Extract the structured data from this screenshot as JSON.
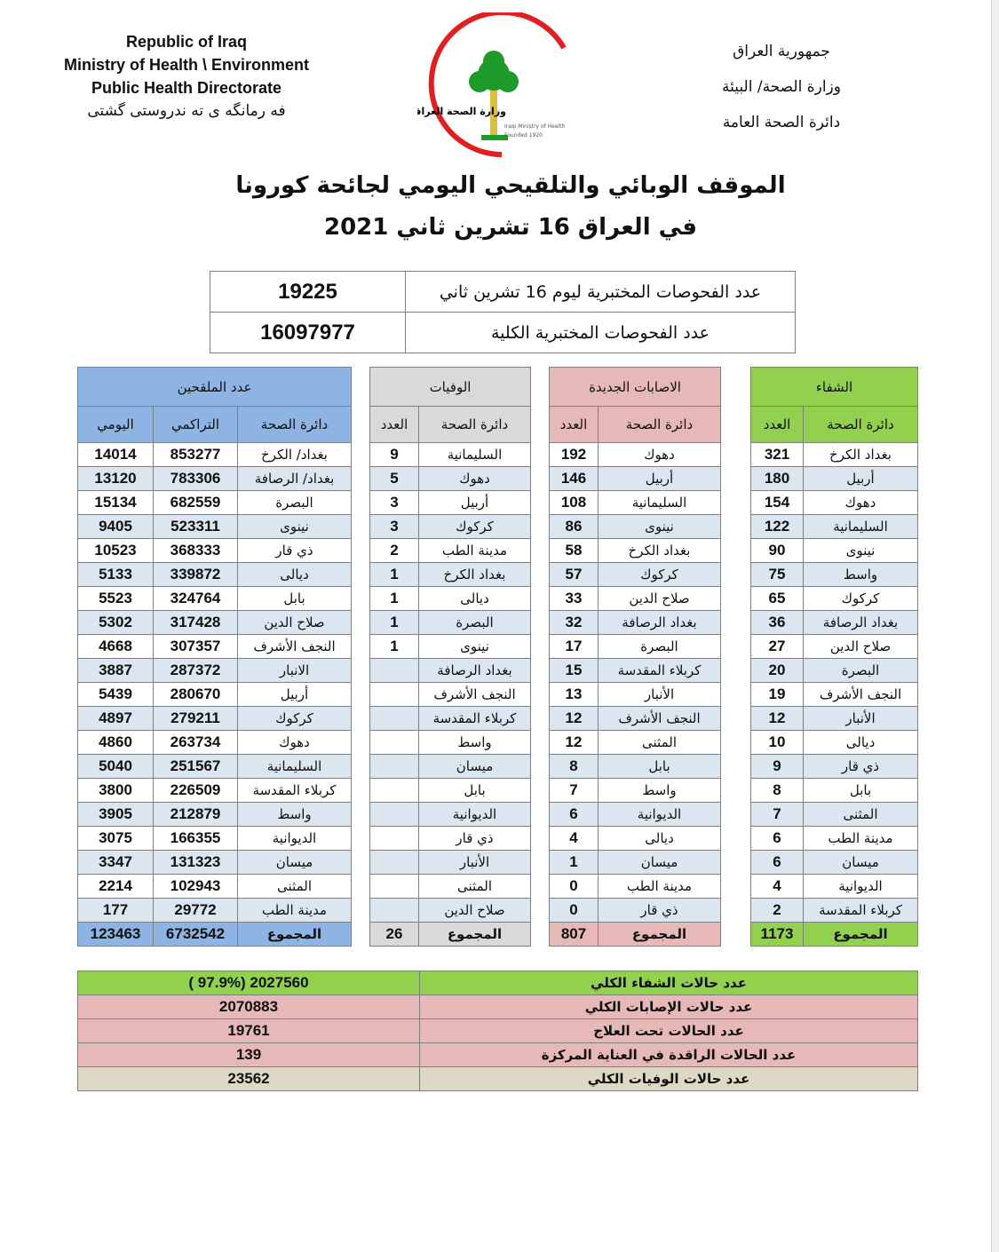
{
  "header": {
    "en_lines": [
      "Republic of Iraq",
      "Ministry of Health \\ Environment",
      "Public Health Directorate"
    ],
    "kurdish_line": "فه رمانگه ی ته ندروستی گشتی",
    "ar_lines": [
      "جمهورية العراق",
      "وزارة الصحة/ البيئة",
      "دائرة الصحة العامة"
    ],
    "logo": {
      "ar": "وزارة الصحة العراقية",
      "en": "Iraqi Ministry of Health",
      "founded": "Founded 1920"
    }
  },
  "title_line1": "الموقف الوبائي والتلقيحي اليومي لجائحة كورونا",
  "title_line2": "في العراق  16  تشرين ثاني 2021",
  "tests": [
    {
      "label": "عدد الفحوصات المختبرية  ليوم 16 تشرين ثاني",
      "value": "19225"
    },
    {
      "label": "عدد الفحوصات المختبرية الكلية",
      "value": "16097977"
    }
  ],
  "colors": {
    "recovery": "#92d050",
    "new_cases": "#e6b8b7",
    "deaths": "#d9d9d9",
    "vaccinated": "#8db4e2",
    "alt_row": "#dce6f1",
    "total_deaths": "#ddd9c4"
  },
  "recovery": {
    "title": "الشفاء",
    "col_name": "دائرة الصحة",
    "col_count": "العدد",
    "rows": [
      [
        "بغداد الكرخ",
        "321"
      ],
      [
        "أربيل",
        "180"
      ],
      [
        "دهوك",
        "154"
      ],
      [
        "السليمانية",
        "122"
      ],
      [
        "نينوى",
        "90"
      ],
      [
        "واسط",
        "75"
      ],
      [
        "كركوك",
        "65"
      ],
      [
        "بغداد الرصافة",
        "36"
      ],
      [
        "صلاح الدين",
        "27"
      ],
      [
        "البصرة",
        "20"
      ],
      [
        "النجف الأشرف",
        "19"
      ],
      [
        "الأنبار",
        "12"
      ],
      [
        "ديالى",
        "10"
      ],
      [
        "ذي قار",
        "9"
      ],
      [
        "بابل",
        "8"
      ],
      [
        "المثنى",
        "7"
      ],
      [
        "مدينة الطب",
        "6"
      ],
      [
        "ميسان",
        "6"
      ],
      [
        "الديوانية",
        "4"
      ],
      [
        "كربلاء المقدسة",
        "2"
      ]
    ],
    "total_label": "المجموع",
    "total": "1173"
  },
  "new_cases": {
    "title": "الاصابات الجديدة",
    "col_name": "دائرة الصحة",
    "col_count": "العدد",
    "rows": [
      [
        "دهوك",
        "192"
      ],
      [
        "أربيل",
        "146"
      ],
      [
        "السليمانية",
        "108"
      ],
      [
        "نينوى",
        "86"
      ],
      [
        "بغداد الكرخ",
        "58"
      ],
      [
        "كركوك",
        "57"
      ],
      [
        "صلاح الدين",
        "33"
      ],
      [
        "بغداد الرصافة",
        "32"
      ],
      [
        "البصرة",
        "17"
      ],
      [
        "كربلاء المقدسة",
        "15"
      ],
      [
        "الأنبار",
        "13"
      ],
      [
        "النجف الأشرف",
        "12"
      ],
      [
        "المثنى",
        "12"
      ],
      [
        "بابل",
        "8"
      ],
      [
        "واسط",
        "7"
      ],
      [
        "الديوانية",
        "6"
      ],
      [
        "ديالى",
        "4"
      ],
      [
        "ميسان",
        "1"
      ],
      [
        "مدينة الطب",
        "0"
      ],
      [
        "ذي قار",
        "0"
      ]
    ],
    "total_label": "المجموع",
    "total": "807"
  },
  "deaths": {
    "title": "الوفيات",
    "col_name": "دائرة الصحة",
    "col_count": "العدد",
    "rows": [
      [
        "السليمانية",
        "9"
      ],
      [
        "دهوك",
        "5"
      ],
      [
        "أربيل",
        "3"
      ],
      [
        "كركوك",
        "3"
      ],
      [
        "مدينة الطب",
        "2"
      ],
      [
        "بغداد الكرخ",
        "1"
      ],
      [
        "ديالى",
        "1"
      ],
      [
        "البصرة",
        "1"
      ],
      [
        "نينوى",
        "1"
      ],
      [
        "بغداد الرصافة",
        ""
      ],
      [
        "النجف الأشرف",
        ""
      ],
      [
        "كربلاء المقدسة",
        ""
      ],
      [
        "واسط",
        ""
      ],
      [
        "ميسان",
        ""
      ],
      [
        "بابل",
        ""
      ],
      [
        "الديوانية",
        ""
      ],
      [
        "ذي قار",
        ""
      ],
      [
        "الأنبار",
        ""
      ],
      [
        "المثنى",
        ""
      ],
      [
        "صلاح الدين",
        ""
      ]
    ],
    "total_label": "المجموع",
    "total": "26"
  },
  "vaccinated": {
    "title": "عدد الملقحين",
    "col_name": "دائرة الصحة",
    "col_cumulative": "التراكمي",
    "col_daily": "اليومي",
    "rows": [
      [
        "بغداد/ الكرخ",
        "853277",
        "14014"
      ],
      [
        "بغداد/ الرصافة",
        "783306",
        "13120"
      ],
      [
        "البصرة",
        "682559",
        "15134"
      ],
      [
        "نينوى",
        "523311",
        "9405"
      ],
      [
        "ذي قار",
        "368333",
        "10523"
      ],
      [
        "ديالى",
        "339872",
        "5133"
      ],
      [
        "بابل",
        "324764",
        "5523"
      ],
      [
        "صلاح الدين",
        "317428",
        "5302"
      ],
      [
        "النجف الأشرف",
        "307357",
        "4668"
      ],
      [
        "الانبار",
        "287372",
        "3887"
      ],
      [
        "أربيل",
        "280670",
        "5439"
      ],
      [
        "كركوك",
        "279211",
        "4897"
      ],
      [
        "دهوك",
        "263734",
        "4860"
      ],
      [
        "السليمانية",
        "251567",
        "5040"
      ],
      [
        "كربلاء المقدسة",
        "226509",
        "3800"
      ],
      [
        "واسط",
        "212879",
        "3905"
      ],
      [
        "الديوانية",
        "166355",
        "3075"
      ],
      [
        "ميسان",
        "131323",
        "3347"
      ],
      [
        "المثنى",
        "102943",
        "2214"
      ],
      [
        "مدينة الطب",
        "29772",
        "177"
      ]
    ],
    "total_label": "المجموع",
    "total_cumulative": "6732542",
    "total_daily": "123463"
  },
  "summary": [
    {
      "label": "عدد حالات الشفاء الكلي",
      "value": "( 97.9%)  2027560",
      "color": "#92d050"
    },
    {
      "label": "عدد حالات الإصابات الكلي",
      "value": "2070883",
      "color": "#e6b8b7"
    },
    {
      "label": "عدد الحالات تحت العلاج",
      "value": "19761",
      "color": "#e6b8b7"
    },
    {
      "label": "عدد الحالات الراقدة في العناية المركزة",
      "value": "139",
      "color": "#e6b8b7"
    },
    {
      "label": "عدد حالات الوفيات الكلي",
      "value": "23562",
      "color": "#ddd9c4"
    }
  ]
}
